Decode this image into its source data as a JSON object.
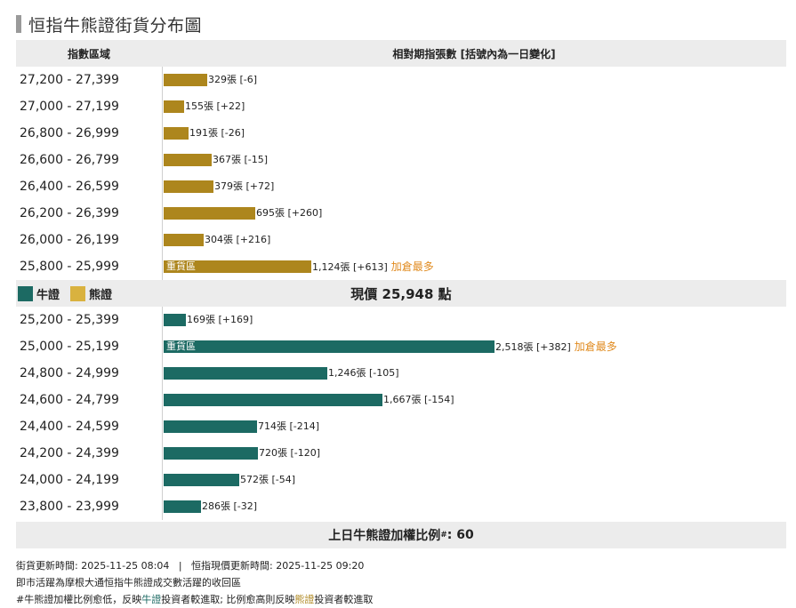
{
  "title": "恒指牛熊證街貨分布圖",
  "header": {
    "left": "指數區域",
    "right": "相對期指張數 [括號內為一日變化]"
  },
  "colors": {
    "bear": "#ad861d",
    "bull": "#1c6a63",
    "highlight": "#e08a1e"
  },
  "chart_data": {
    "type": "bar",
    "orientation": "horizontal",
    "unit": "張",
    "max_value": 2518,
    "bear_rows": [
      {
        "range": "27,200 - 27,399",
        "value": 329,
        "label": "329張 [-6]"
      },
      {
        "range": "27,000 - 27,199",
        "value": 155,
        "label": "155張 [+22]"
      },
      {
        "range": "26,800 - 26,999",
        "value": 191,
        "label": "191張 [-26]"
      },
      {
        "range": "26,600 - 26,799",
        "value": 367,
        "label": "367張 [-15]"
      },
      {
        "range": "26,400 - 26,599",
        "value": 379,
        "label": "379張 [+72]"
      },
      {
        "range": "26,200 - 26,399",
        "value": 695,
        "label": "695張 [+260]"
      },
      {
        "range": "26,000 - 26,199",
        "value": 304,
        "label": "304張 [+216]"
      },
      {
        "range": "25,800 - 25,999",
        "value": 1124,
        "label": "1,124張 [+613]",
        "inner": "重貨區",
        "note": "加倉最多"
      }
    ],
    "bull_rows": [
      {
        "range": "25,200 - 25,399",
        "value": 169,
        "label": "169張 [+169]"
      },
      {
        "range": "25,000 - 25,199",
        "value": 2518,
        "label": "2,518張 [+382]",
        "inner": "重貨區",
        "note": "加倉最多"
      },
      {
        "range": "24,800 - 24,999",
        "value": 1246,
        "label": "1,246張 [-105]"
      },
      {
        "range": "24,600 - 24,799",
        "value": 1667,
        "label": "1,667張 [-154]"
      },
      {
        "range": "24,400 - 24,599",
        "value": 714,
        "label": "714張 [-214]"
      },
      {
        "range": "24,200 - 24,399",
        "value": 720,
        "label": "720張 [-120]"
      },
      {
        "range": "24,000 - 24,199",
        "value": 572,
        "label": "572張 [-54]"
      },
      {
        "range": "23,800 - 23,999",
        "value": 286,
        "label": "286張 [-32]"
      }
    ]
  },
  "legend": {
    "bull": "牛證",
    "bear": "熊證"
  },
  "current_price": {
    "prefix": "現價",
    "value": "25,948",
    "suffix": "點"
  },
  "ratio": {
    "label": "上日牛熊證加權比例",
    "mark": "#",
    "value": ": 60"
  },
  "notes": {
    "update_line": "街貨更新時間: 2025-11-25 08:04   |   恒指現價更新時間: 2025-11-25 09:20",
    "line2": "即市活躍為摩根大通恒指牛熊證成交數活躍的收回區",
    "line3_a": "#牛熊證加權比例愈低，反映",
    "line3_bull": "牛證",
    "line3_b": "投資者較進取; 比例愈高則反映",
    "line3_bear": "熊證",
    "line3_c": "投資者較進取"
  }
}
